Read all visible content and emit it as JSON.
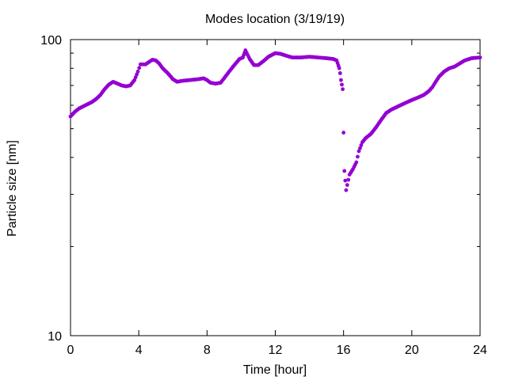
{
  "chart_data": {
    "type": "scatter",
    "title": "Modes location (3/19/19)",
    "xlabel": "Time [hour]",
    "ylabel": "Particle size [nm]",
    "xlim": [
      0,
      24
    ],
    "ylim": [
      10,
      100
    ],
    "yscale": "log",
    "grid": false,
    "legend": "none",
    "x_ticks": [
      "0",
      "4",
      "8",
      "12",
      "16",
      "20",
      "24"
    ],
    "y_ticks": [
      "10",
      "100"
    ],
    "marker_color": "#9400d3",
    "series": [
      {
        "points": [
          [
            0.0,
            55.0
          ],
          [
            0.25,
            57.0
          ],
          [
            0.5,
            58.5
          ],
          [
            0.75,
            59.5
          ],
          [
            1.0,
            60.5
          ],
          [
            1.25,
            61.5
          ],
          [
            1.5,
            63.0
          ],
          [
            1.75,
            65.0
          ],
          [
            2.0,
            68.0
          ],
          [
            2.25,
            70.5
          ],
          [
            2.5,
            72.0
          ],
          [
            2.75,
            71.0
          ],
          [
            3.0,
            70.0
          ],
          [
            3.25,
            69.5
          ],
          [
            3.5,
            70.0
          ],
          [
            3.75,
            73.0
          ],
          [
            3.95,
            78.0
          ],
          [
            4.1,
            82.5
          ],
          [
            4.4,
            82.5
          ],
          [
            4.6,
            84.0
          ],
          [
            4.8,
            85.5
          ],
          [
            5.0,
            85.0
          ],
          [
            5.2,
            83.0
          ],
          [
            5.4,
            80.0
          ],
          [
            5.7,
            77.0
          ],
          [
            6.0,
            73.5
          ],
          [
            6.25,
            72.0
          ],
          [
            6.5,
            72.5
          ],
          [
            7.0,
            73.0
          ],
          [
            7.5,
            73.5
          ],
          [
            7.8,
            74.0
          ],
          [
            8.0,
            73.0
          ],
          [
            8.2,
            71.5
          ],
          [
            8.5,
            71.0
          ],
          [
            8.8,
            71.5
          ],
          [
            9.0,
            74.0
          ],
          [
            9.3,
            78.0
          ],
          [
            9.6,
            82.0
          ],
          [
            9.9,
            86.0
          ],
          [
            10.1,
            87.0
          ],
          [
            10.25,
            92.0
          ],
          [
            10.5,
            86.0
          ],
          [
            10.75,
            82.0
          ],
          [
            11.0,
            82.0
          ],
          [
            11.3,
            84.5
          ],
          [
            11.6,
            87.5
          ],
          [
            12.0,
            90.0
          ],
          [
            12.3,
            89.5
          ],
          [
            12.7,
            88.0
          ],
          [
            13.0,
            87.0
          ],
          [
            13.5,
            87.0
          ],
          [
            14.0,
            87.5
          ],
          [
            14.5,
            87.0
          ],
          [
            15.0,
            86.5
          ],
          [
            15.4,
            86.0
          ],
          [
            15.6,
            85.0
          ],
          [
            15.75,
            80.0
          ],
          [
            15.8,
            77.0
          ],
          [
            15.85,
            73.0
          ],
          [
            15.95,
            68.0
          ],
          [
            16.0,
            48.5
          ],
          [
            16.05,
            36.0
          ],
          [
            16.15,
            31.0
          ],
          [
            16.35,
            35.0
          ],
          [
            16.55,
            36.5
          ],
          [
            16.75,
            38.5
          ],
          [
            16.9,
            42.0
          ],
          [
            17.1,
            45.0
          ],
          [
            17.3,
            46.5
          ],
          [
            17.6,
            48.0
          ],
          [
            17.9,
            50.5
          ],
          [
            18.2,
            53.5
          ],
          [
            18.5,
            56.5
          ],
          [
            18.8,
            58.0
          ],
          [
            19.2,
            59.5
          ],
          [
            19.6,
            61.0
          ],
          [
            20.0,
            62.5
          ],
          [
            20.3,
            63.5
          ],
          [
            20.7,
            65.0
          ],
          [
            21.0,
            67.0
          ],
          [
            21.2,
            69.0
          ],
          [
            21.4,
            72.0
          ],
          [
            21.6,
            75.0
          ],
          [
            21.9,
            78.0
          ],
          [
            22.2,
            80.0
          ],
          [
            22.5,
            81.0
          ],
          [
            22.8,
            83.0
          ],
          [
            23.1,
            85.0
          ],
          [
            23.5,
            86.5
          ],
          [
            24.0,
            87.0
          ]
        ]
      }
    ]
  }
}
